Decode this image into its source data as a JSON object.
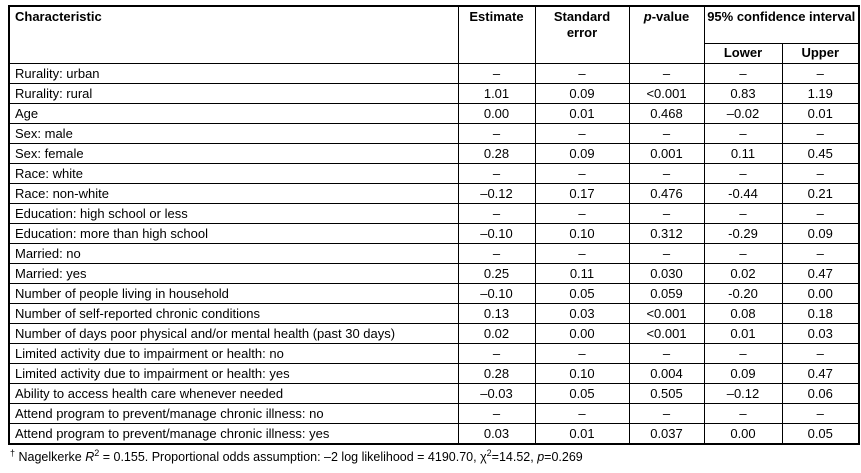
{
  "table": {
    "headers": {
      "characteristic": "Characteristic",
      "estimate": "Estimate",
      "standard_error": "Standard error",
      "p_italic": "p",
      "p_rest": "-value",
      "ci": "95% confidence interval",
      "lower": "Lower",
      "upper": "Upper"
    },
    "rows": [
      {
        "characteristic": "Rurality: urban",
        "estimate": "–",
        "se": "–",
        "p": "–",
        "lower": "–",
        "upper": "–"
      },
      {
        "characteristic": "Rurality: rural",
        "estimate": "1.01",
        "se": "0.09",
        "p": "<0.001",
        "lower": "0.83",
        "upper": "1.19"
      },
      {
        "characteristic": "Age",
        "estimate": "0.00",
        "se": "0.01",
        "p": "0.468",
        "lower": "–0.02",
        "upper": "0.01"
      },
      {
        "characteristic": "Sex: male",
        "estimate": "–",
        "se": "–",
        "p": "–",
        "lower": "–",
        "upper": "–"
      },
      {
        "characteristic": "Sex: female",
        "estimate": "0.28",
        "se": "0.09",
        "p": "0.001",
        "lower": "0.11",
        "upper": "0.45"
      },
      {
        "characteristic": "Race: white",
        "estimate": "–",
        "se": "–",
        "p": "–",
        "lower": "–",
        "upper": "–"
      },
      {
        "characteristic": "Race: non-white",
        "estimate": "–0.12",
        "se": "0.17",
        "p": "0.476",
        "lower": "-0.44",
        "upper": "0.21"
      },
      {
        "characteristic": "Education: high school or less",
        "estimate": "–",
        "se": "–",
        "p": "–",
        "lower": "–",
        "upper": "–"
      },
      {
        "characteristic": "Education: more than high school",
        "estimate": "–0.10",
        "se": "0.10",
        "p": "0.312",
        "lower": "-0.29",
        "upper": "0.09"
      },
      {
        "characteristic": "Married: no",
        "estimate": "–",
        "se": "–",
        "p": "–",
        "lower": "–",
        "upper": "–"
      },
      {
        "characteristic": "Married: yes",
        "estimate": "0.25",
        "se": "0.11",
        "p": "0.030",
        "lower": "0.02",
        "upper": "0.47"
      },
      {
        "characteristic": "Number of people living in household",
        "estimate": "–0.10",
        "se": "0.05",
        "p": "0.059",
        "lower": "-0.20",
        "upper": "0.00"
      },
      {
        "characteristic": "Number of self-reported chronic conditions",
        "estimate": "0.13",
        "se": "0.03",
        "p": "<0.001",
        "lower": "0.08",
        "upper": "0.18"
      },
      {
        "characteristic": "Number of days poor physical and/or mental health (past 30 days)",
        "estimate": "0.02",
        "se": "0.00",
        "p": "<0.001",
        "lower": "0.01",
        "upper": "0.03"
      },
      {
        "characteristic": "Limited activity due to impairment or health: no",
        "estimate": "–",
        "se": "–",
        "p": "–",
        "lower": "–",
        "upper": "–"
      },
      {
        "characteristic": "Limited activity due to impairment or health: yes",
        "estimate": "0.28",
        "se": "0.10",
        "p": "0.004",
        "lower": "0.09",
        "upper": "0.47"
      },
      {
        "characteristic": "Ability to access health care whenever needed",
        "estimate": "–0.03",
        "se": "0.05",
        "p": "0.505",
        "lower": "–0.12",
        "upper": "0.06"
      },
      {
        "characteristic": "Attend program to prevent/manage chronic illness: no",
        "estimate": "–",
        "se": "–",
        "p": "–",
        "lower": "–",
        "upper": "–"
      },
      {
        "characteristic": "Attend program to prevent/manage chronic illness: yes",
        "estimate": "0.03",
        "se": "0.01",
        "p": "0.037",
        "lower": "0.00",
        "upper": "0.05"
      }
    ]
  },
  "footnote": {
    "dagger": "†",
    "text1": " Nagelkerke ",
    "r": "R",
    "r_sup": "2",
    "text2": " = 0.155. Proportional odds assumption: –2 log likelihood = 4190.70, ",
    "chi": "χ",
    "chi_sup": "2",
    "text3": "=14.52, ",
    "p": "p",
    "text4": "=0.269"
  }
}
